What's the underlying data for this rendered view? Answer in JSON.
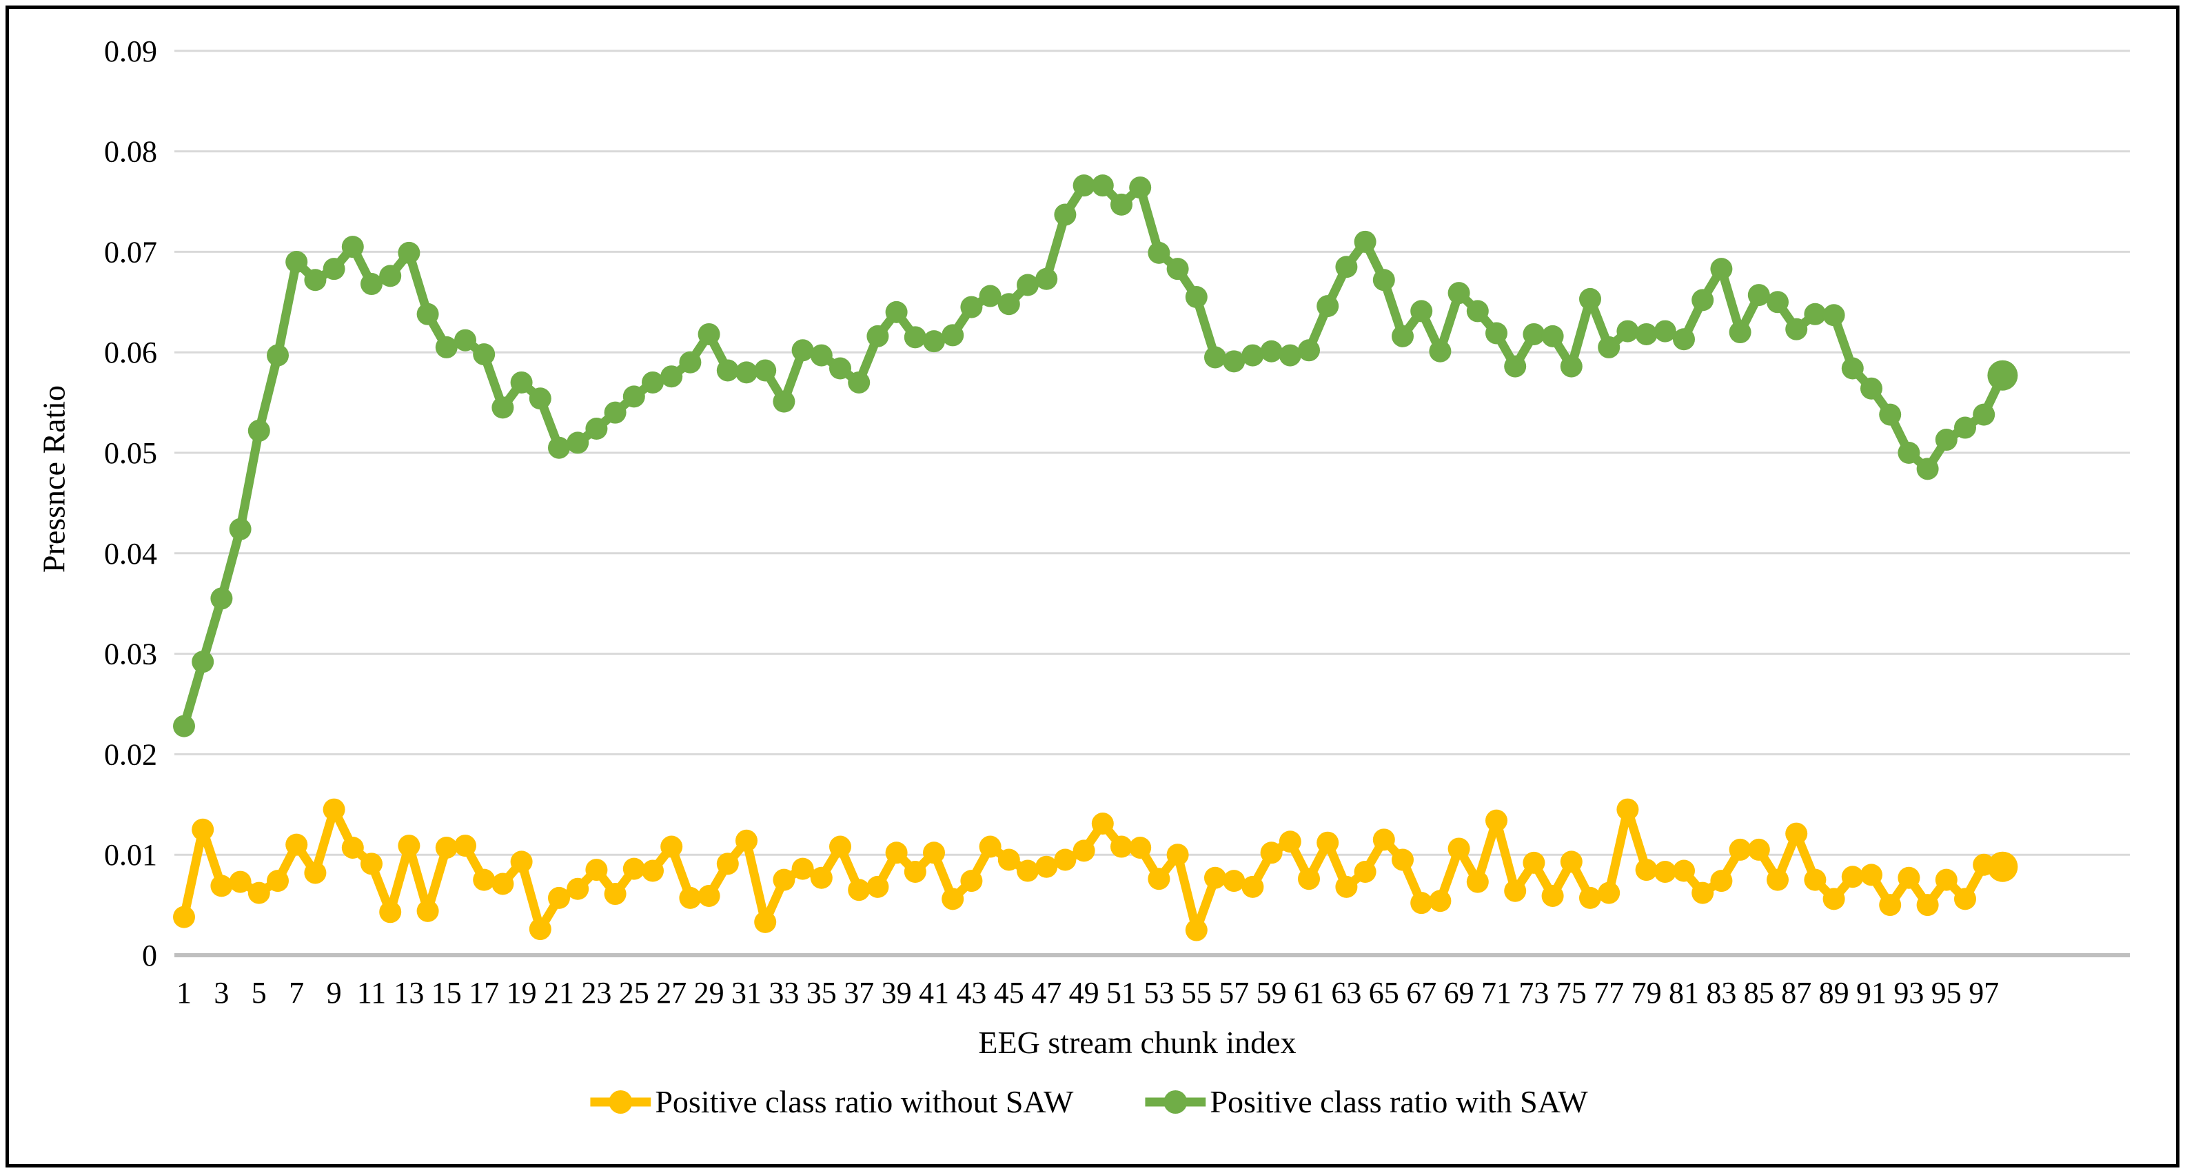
{
  "chart_data": {
    "type": "line",
    "title": "",
    "xlabel": "EEG stream chunk index",
    "ylabel": "Pressnce Ratio",
    "x_range": [
      1,
      98
    ],
    "ylim": [
      0,
      0.09
    ],
    "yticks": [
      0,
      0.01,
      0.02,
      0.03,
      0.04,
      0.05,
      0.06,
      0.07,
      0.08,
      0.09
    ],
    "ytick_labels": [
      "0",
      "0.01",
      "0.02",
      "0.03",
      "0.04",
      "0.05",
      "0.06",
      "0.07",
      "0.08",
      "0.09"
    ],
    "xtick_labels": [
      "1",
      "3",
      "5",
      "7",
      "9",
      "11",
      "13",
      "15",
      "17",
      "19",
      "21",
      "23",
      "25",
      "27",
      "29",
      "31",
      "33",
      "35",
      "37",
      "39",
      "41",
      "43",
      "45",
      "47",
      "49",
      "51",
      "53",
      "55",
      "57",
      "59",
      "61",
      "63",
      "65",
      "67",
      "69",
      "71",
      "73",
      "75",
      "77",
      "79",
      "81",
      "83",
      "85",
      "87",
      "89",
      "91",
      "93",
      "95",
      "97"
    ],
    "grid": true,
    "legend_position": "bottom",
    "gridline_color": "#D9D9D9",
    "axis_line_color": "#BFBFBF",
    "series": [
      {
        "name": "Positive class ratio without SAW",
        "color": "#FFC000",
        "values": [
          0.0038,
          0.0125,
          0.0069,
          0.0073,
          0.0062,
          0.0074,
          0.011,
          0.0082,
          0.0145,
          0.0107,
          0.0091,
          0.0043,
          0.0109,
          0.0044,
          0.0107,
          0.0109,
          0.0075,
          0.0071,
          0.0093,
          0.0026,
          0.0057,
          0.0066,
          0.0085,
          0.0061,
          0.0086,
          0.0084,
          0.0108,
          0.0057,
          0.0059,
          0.0091,
          0.0114,
          0.0033,
          0.0075,
          0.0086,
          0.0077,
          0.0108,
          0.0065,
          0.0068,
          0.0102,
          0.0083,
          0.0102,
          0.0056,
          0.0074,
          0.0108,
          0.0095,
          0.0084,
          0.0088,
          0.0095,
          0.0104,
          0.0131,
          0.0108,
          0.0107,
          0.0076,
          0.01,
          0.0025,
          0.0077,
          0.0074,
          0.0068,
          0.0102,
          0.0113,
          0.0076,
          0.0112,
          0.0068,
          0.0083,
          0.0115,
          0.0095,
          0.0052,
          0.0054,
          0.0106,
          0.0073,
          0.0134,
          0.0064,
          0.0092,
          0.0059,
          0.0093,
          0.0057,
          0.0062,
          0.0145,
          0.0085,
          0.0083,
          0.0084,
          0.0062,
          0.0074,
          0.0105,
          0.0105,
          0.0075,
          0.0121,
          0.0075,
          0.0056,
          0.0078,
          0.008,
          0.005,
          0.0077,
          0.005,
          0.0075,
          0.0056,
          0.009,
          0.0088
        ]
      },
      {
        "name": "Positive class ratio with SAW",
        "color": "#70AD47",
        "values": [
          0.0228,
          0.0292,
          0.0355,
          0.0424,
          0.0522,
          0.0597,
          0.069,
          0.0672,
          0.0683,
          0.0705,
          0.0668,
          0.0676,
          0.0699,
          0.0638,
          0.0605,
          0.0612,
          0.0598,
          0.0545,
          0.057,
          0.0554,
          0.0505,
          0.051,
          0.0524,
          0.054,
          0.0556,
          0.057,
          0.0576,
          0.059,
          0.0618,
          0.0582,
          0.058,
          0.0582,
          0.0551,
          0.0602,
          0.0597,
          0.0584,
          0.057,
          0.0616,
          0.064,
          0.0615,
          0.0611,
          0.0617,
          0.0645,
          0.0656,
          0.0648,
          0.0667,
          0.0673,
          0.0737,
          0.0766,
          0.0766,
          0.0747,
          0.0764,
          0.0699,
          0.0683,
          0.0655,
          0.0595,
          0.0591,
          0.0597,
          0.0601,
          0.0597,
          0.0602,
          0.0646,
          0.0685,
          0.071,
          0.0672,
          0.0616,
          0.0641,
          0.0601,
          0.0659,
          0.0641,
          0.0619,
          0.0586,
          0.0618,
          0.0616,
          0.0586,
          0.0653,
          0.0605,
          0.0621,
          0.0618,
          0.0621,
          0.0613,
          0.0652,
          0.0683,
          0.062,
          0.0657,
          0.065,
          0.0623,
          0.0638,
          0.0637,
          0.0584,
          0.0564,
          0.0538,
          0.05,
          0.0484,
          0.0513,
          0.0525,
          0.0538,
          0.0577
        ]
      }
    ]
  }
}
